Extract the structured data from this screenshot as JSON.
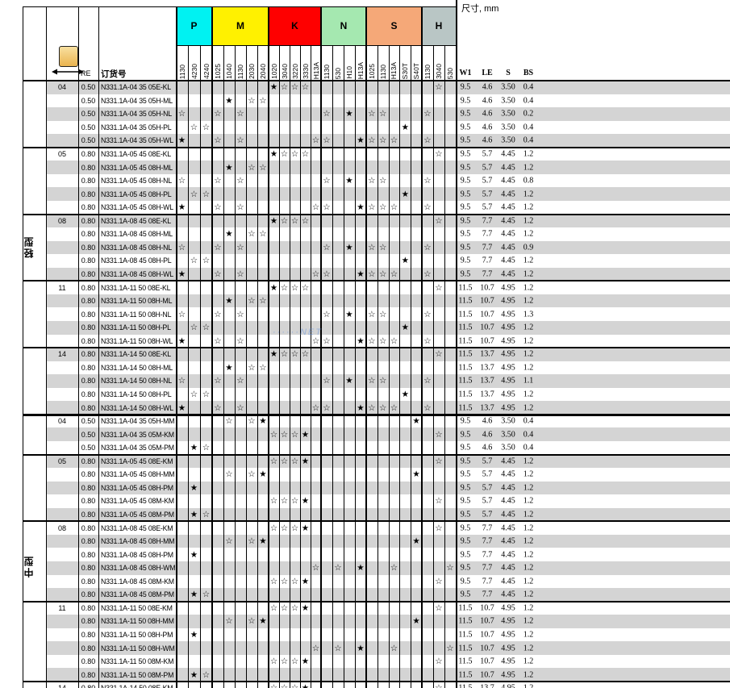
{
  "title_note": "尺寸, mm",
  "header": {
    "re": "RE",
    "order": "订货号",
    "dims": [
      "W1",
      "LE",
      "S",
      "BS"
    ],
    "icon": "insert-width-icon"
  },
  "sections": [
    {
      "label": "轻型"
    },
    {
      "label": "中型"
    }
  ],
  "grade_groups": [
    {
      "letter": "P",
      "color": "#00F2F2",
      "cols": [
        "1130",
        "4230",
        "4240"
      ]
    },
    {
      "letter": "M",
      "color": "#FFF100",
      "cols": [
        "1025",
        "1040",
        "1130",
        "2030",
        "2040"
      ]
    },
    {
      "letter": "K",
      "color": "#FE0000",
      "cols": [
        "1020",
        "3040",
        "3220",
        "3330",
        "H13A"
      ]
    },
    {
      "letter": "N",
      "color": "#A5E8B0",
      "cols": [
        "1130",
        "530",
        "H10",
        "H13A"
      ]
    },
    {
      "letter": "S",
      "color": "#F5A878",
      "cols": [
        "1025",
        "1130",
        "H13A",
        "S30T",
        "S40T"
      ]
    },
    {
      "letter": "H",
      "color": "#B9C6C5",
      "cols": [
        "1130",
        "3040",
        "530"
      ]
    }
  ],
  "star_legend": {
    "filled": "★",
    "open": "☆"
  },
  "patterns": {
    "E-KL": [
      [
        8,
        "f"
      ],
      [
        9,
        "o"
      ],
      [
        10,
        "o"
      ],
      [
        11,
        "o"
      ],
      [
        23,
        "o"
      ]
    ],
    "H-ML": [
      [
        4,
        "f"
      ],
      [
        6,
        "o"
      ],
      [
        7,
        "o"
      ]
    ],
    "H-NL": [
      [
        0,
        "o"
      ],
      [
        3,
        "o"
      ],
      [
        5,
        "o"
      ],
      [
        13,
        "o"
      ],
      [
        15,
        "f"
      ],
      [
        17,
        "o"
      ],
      [
        18,
        "o"
      ],
      [
        22,
        "o"
      ]
    ],
    "H-PL": [
      [
        1,
        "o"
      ],
      [
        2,
        "o"
      ],
      [
        20,
        "f"
      ]
    ],
    "H-WL": [
      [
        0,
        "f"
      ],
      [
        3,
        "o"
      ],
      [
        5,
        "o"
      ],
      [
        12,
        "o"
      ],
      [
        13,
        "o"
      ],
      [
        16,
        "f"
      ],
      [
        17,
        "o"
      ],
      [
        18,
        "o"
      ],
      [
        19,
        "o"
      ],
      [
        22,
        "o"
      ]
    ],
    "E-KM": [
      [
        8,
        "o"
      ],
      [
        9,
        "o"
      ],
      [
        10,
        "o"
      ],
      [
        11,
        "f"
      ],
      [
        23,
        "o"
      ]
    ],
    "H-MM": [
      [
        4,
        "o"
      ],
      [
        6,
        "o"
      ],
      [
        7,
        "f"
      ],
      [
        21,
        "f"
      ]
    ],
    "H-PM": [
      [
        1,
        "f"
      ]
    ],
    "H-WM": [
      [
        12,
        "o"
      ],
      [
        14,
        "o"
      ],
      [
        16,
        "f"
      ],
      [
        19,
        "o"
      ],
      [
        24,
        "o"
      ]
    ],
    "M-KM": [
      [
        8,
        "o"
      ],
      [
        9,
        "o"
      ],
      [
        10,
        "o"
      ],
      [
        11,
        "f"
      ],
      [
        23,
        "o"
      ]
    ],
    "M-PM": [
      [
        1,
        "f"
      ],
      [
        2,
        "o"
      ]
    ]
  },
  "rows": [
    {
      "sec": 0,
      "group": "04",
      "re": "0.50",
      "order": "N331.1A-04 35 05E-KL",
      "pattern": "E-KL",
      "dims": [
        "9.5",
        "4.6",
        "3.50",
        "0.4"
      ]
    },
    {
      "sec": 0,
      "group": "",
      "re": "0.50",
      "order": "N331.1A-04 35 05H-ML",
      "pattern": "H-ML",
      "dims": [
        "9.5",
        "4.6",
        "3.50",
        "0.4"
      ]
    },
    {
      "sec": 0,
      "group": "",
      "re": "0.50",
      "order": "N331.1A-04 35 05H-NL",
      "pattern": "H-NL",
      "dims": [
        "9.5",
        "4.6",
        "3.50",
        "0.2"
      ]
    },
    {
      "sec": 0,
      "group": "",
      "re": "0.50",
      "order": "N331.1A-04 35 05H-PL",
      "pattern": "H-PL",
      "dims": [
        "9.5",
        "4.6",
        "3.50",
        "0.4"
      ]
    },
    {
      "sec": 0,
      "group": "",
      "re": "0.50",
      "order": "N331.1A-04 35 05H-WL",
      "pattern": "H-WL",
      "dims": [
        "9.5",
        "4.6",
        "3.50",
        "0.4"
      ]
    },
    {
      "sec": 0,
      "group": "05",
      "re": "0.80",
      "order": "N331.1A-05 45 08E-KL",
      "pattern": "E-KL",
      "dims": [
        "9.5",
        "5.7",
        "4.45",
        "1.2"
      ]
    },
    {
      "sec": 0,
      "group": "",
      "re": "0.80",
      "order": "N331.1A-05 45 08H-ML",
      "pattern": "H-ML",
      "dims": [
        "9.5",
        "5.7",
        "4.45",
        "1.2"
      ]
    },
    {
      "sec": 0,
      "group": "",
      "re": "0.80",
      "order": "N331.1A-05 45 08H-NL",
      "pattern": "H-NL",
      "dims": [
        "9.5",
        "5.7",
        "4.45",
        "0.8"
      ]
    },
    {
      "sec": 0,
      "group": "",
      "re": "0.80",
      "order": "N331.1A-05 45 08H-PL",
      "pattern": "H-PL",
      "dims": [
        "9.5",
        "5.7",
        "4.45",
        "1.2"
      ]
    },
    {
      "sec": 0,
      "group": "",
      "re": "0.80",
      "order": "N331.1A-05 45 08H-WL",
      "pattern": "H-WL",
      "dims": [
        "9.5",
        "5.7",
        "4.45",
        "1.2"
      ]
    },
    {
      "sec": 0,
      "group": "08",
      "re": "0.80",
      "order": "N331.1A-08 45 08E-KL",
      "pattern": "E-KL",
      "dims": [
        "9.5",
        "7.7",
        "4.45",
        "1.2"
      ]
    },
    {
      "sec": 0,
      "group": "",
      "re": "0.80",
      "order": "N331.1A-08 45 08H-ML",
      "pattern": "H-ML",
      "dims": [
        "9.5",
        "7.7",
        "4.45",
        "1.2"
      ]
    },
    {
      "sec": 0,
      "group": "",
      "re": "0.80",
      "order": "N331.1A-08 45 08H-NL",
      "pattern": "H-NL",
      "dims": [
        "9.5",
        "7.7",
        "4.45",
        "0.9"
      ]
    },
    {
      "sec": 0,
      "group": "",
      "re": "0.80",
      "order": "N331.1A-08 45 08H-PL",
      "pattern": "H-PL",
      "dims": [
        "9.5",
        "7.7",
        "4.45",
        "1.2"
      ]
    },
    {
      "sec": 0,
      "group": "",
      "re": "0.80",
      "order": "N331.1A-08 45 08H-WL",
      "pattern": "H-WL",
      "dims": [
        "9.5",
        "7.7",
        "4.45",
        "1.2"
      ]
    },
    {
      "sec": 0,
      "group": "11",
      "re": "0.80",
      "order": "N331.1A-11 50 08E-KL",
      "pattern": "E-KL",
      "dims": [
        "11.5",
        "10.7",
        "4.95",
        "1.2"
      ]
    },
    {
      "sec": 0,
      "group": "",
      "re": "0.80",
      "order": "N331.1A-11 50 08H-ML",
      "pattern": "H-ML",
      "dims": [
        "11.5",
        "10.7",
        "4.95",
        "1.2"
      ]
    },
    {
      "sec": 0,
      "group": "",
      "re": "0.80",
      "order": "N331.1A-11 50 08H-NL",
      "pattern": "H-NL",
      "dims": [
        "11.5",
        "10.7",
        "4.95",
        "1.3"
      ]
    },
    {
      "sec": 0,
      "group": "",
      "re": "0.80",
      "order": "N331.1A-11 50 08H-PL",
      "pattern": "H-PL",
      "dims": [
        "11.5",
        "10.7",
        "4.95",
        "1.2"
      ]
    },
    {
      "sec": 0,
      "group": "",
      "re": "0.80",
      "order": "N331.1A-11 50 08H-WL",
      "pattern": "H-WL",
      "dims": [
        "11.5",
        "10.7",
        "4.95",
        "1.2"
      ]
    },
    {
      "sec": 0,
      "group": "14",
      "re": "0.80",
      "order": "N331.1A-14 50 08E-KL",
      "pattern": "E-KL",
      "dims": [
        "11.5",
        "13.7",
        "4.95",
        "1.2"
      ]
    },
    {
      "sec": 0,
      "group": "",
      "re": "0.80",
      "order": "N331.1A-14 50 08H-ML",
      "pattern": "H-ML",
      "dims": [
        "11.5",
        "13.7",
        "4.95",
        "1.2"
      ]
    },
    {
      "sec": 0,
      "group": "",
      "re": "0.80",
      "order": "N331.1A-14 50 08H-NL",
      "pattern": "H-NL",
      "dims": [
        "11.5",
        "13.7",
        "4.95",
        "1.1"
      ]
    },
    {
      "sec": 0,
      "group": "",
      "re": "0.80",
      "order": "N331.1A-14 50 08H-PL",
      "pattern": "H-PL",
      "dims": [
        "11.5",
        "13.7",
        "4.95",
        "1.2"
      ]
    },
    {
      "sec": 0,
      "group": "",
      "re": "0.80",
      "order": "N331.1A-14 50 08H-WL",
      "pattern": "H-WL",
      "dims": [
        "11.5",
        "13.7",
        "4.95",
        "1.2"
      ]
    },
    {
      "sec": 1,
      "group": "04",
      "re": "0.50",
      "order": "N331.1A-04 35 05H-MM",
      "pattern": "H-MM",
      "dims": [
        "9.5",
        "4.6",
        "3.50",
        "0.4"
      ]
    },
    {
      "sec": 1,
      "group": "",
      "re": "0.50",
      "order": "N331.1A-04 35 05M-KM",
      "pattern": "M-KM",
      "dims": [
        "9.5",
        "4.6",
        "3.50",
        "0.4"
      ]
    },
    {
      "sec": 1,
      "group": "",
      "re": "0.50",
      "order": "N331.1A-04 35 05M-PM",
      "pattern": "M-PM",
      "dims": [
        "9.5",
        "4.6",
        "3.50",
        "0.4"
      ]
    },
    {
      "sec": 1,
      "group": "05",
      "re": "0.80",
      "order": "N331.1A-05 45 08E-KM",
      "pattern": "E-KM",
      "dims": [
        "9.5",
        "5.7",
        "4.45",
        "1.2"
      ]
    },
    {
      "sec": 1,
      "group": "",
      "re": "0.80",
      "order": "N331.1A-05 45 08H-MM",
      "pattern": "H-MM",
      "dims": [
        "9.5",
        "5.7",
        "4.45",
        "1.2"
      ]
    },
    {
      "sec": 1,
      "group": "",
      "re": "0.80",
      "order": "N331.1A-05 45 08H-PM",
      "pattern": "H-PM",
      "dims": [
        "9.5",
        "5.7",
        "4.45",
        "1.2"
      ]
    },
    {
      "sec": 1,
      "group": "",
      "re": "0.80",
      "order": "N331.1A-05 45 08M-KM",
      "pattern": "M-KM",
      "dims": [
        "9.5",
        "5.7",
        "4.45",
        "1.2"
      ]
    },
    {
      "sec": 1,
      "group": "",
      "re": "0.80",
      "order": "N331.1A-05 45 08M-PM",
      "pattern": "M-PM",
      "dims": [
        "9.5",
        "5.7",
        "4.45",
        "1.2"
      ]
    },
    {
      "sec": 1,
      "group": "08",
      "re": "0.80",
      "order": "N331.1A-08 45 08E-KM",
      "pattern": "E-KM",
      "dims": [
        "9.5",
        "7.7",
        "4.45",
        "1.2"
      ]
    },
    {
      "sec": 1,
      "group": "",
      "re": "0.80",
      "order": "N331.1A-08 45 08H-MM",
      "pattern": "H-MM",
      "dims": [
        "9.5",
        "7.7",
        "4.45",
        "1.2"
      ]
    },
    {
      "sec": 1,
      "group": "",
      "re": "0.80",
      "order": "N331.1A-08 45 08H-PM",
      "pattern": "H-PM",
      "dims": [
        "9.5",
        "7.7",
        "4.45",
        "1.2"
      ]
    },
    {
      "sec": 1,
      "group": "",
      "re": "0.80",
      "order": "N331.1A-08 45 08H-WM",
      "pattern": "H-WM",
      "dims": [
        "9.5",
        "7.7",
        "4.45",
        "1.2"
      ]
    },
    {
      "sec": 1,
      "group": "",
      "re": "0.80",
      "order": "N331.1A-08 45 08M-KM",
      "pattern": "M-KM",
      "dims": [
        "9.5",
        "7.7",
        "4.45",
        "1.2"
      ]
    },
    {
      "sec": 1,
      "group": "",
      "re": "0.80",
      "order": "N331.1A-08 45 08M-PM",
      "pattern": "M-PM",
      "dims": [
        "9.5",
        "7.7",
        "4.45",
        "1.2"
      ]
    },
    {
      "sec": 1,
      "group": "11",
      "re": "0.80",
      "order": "N331.1A-11 50 08E-KM",
      "pattern": "E-KM",
      "dims": [
        "11.5",
        "10.7",
        "4.95",
        "1.2"
      ]
    },
    {
      "sec": 1,
      "group": "",
      "re": "0.80",
      "order": "N331.1A-11 50 08H-MM",
      "pattern": "H-MM",
      "dims": [
        "11.5",
        "10.7",
        "4.95",
        "1.2"
      ]
    },
    {
      "sec": 1,
      "group": "",
      "re": "0.80",
      "order": "N331.1A-11 50 08H-PM",
      "pattern": "H-PM",
      "dims": [
        "11.5",
        "10.7",
        "4.95",
        "1.2"
      ]
    },
    {
      "sec": 1,
      "group": "",
      "re": "0.80",
      "order": "N331.1A-11 50 08H-WM",
      "pattern": "H-WM",
      "dims": [
        "11.5",
        "10.7",
        "4.95",
        "1.2"
      ]
    },
    {
      "sec": 1,
      "group": "",
      "re": "0.80",
      "order": "N331.1A-11 50 08M-KM",
      "pattern": "M-KM",
      "dims": [
        "11.5",
        "10.7",
        "4.95",
        "1.2"
      ]
    },
    {
      "sec": 1,
      "group": "",
      "re": "0.80",
      "order": "N331.1A-11 50 08M-PM",
      "pattern": "M-PM",
      "dims": [
        "11.5",
        "10.7",
        "4.95",
        "1.2"
      ]
    },
    {
      "sec": 1,
      "group": "14",
      "re": "0.80",
      "order": "N331.1A-14 50 08E-KM",
      "pattern": "E-KM",
      "dims": [
        "11.5",
        "13.7",
        "4.95",
        "1.2"
      ]
    }
  ],
  "watermark": "······NET",
  "colors": {
    "row_alt": "#D4D4D4",
    "border": "#000000"
  }
}
